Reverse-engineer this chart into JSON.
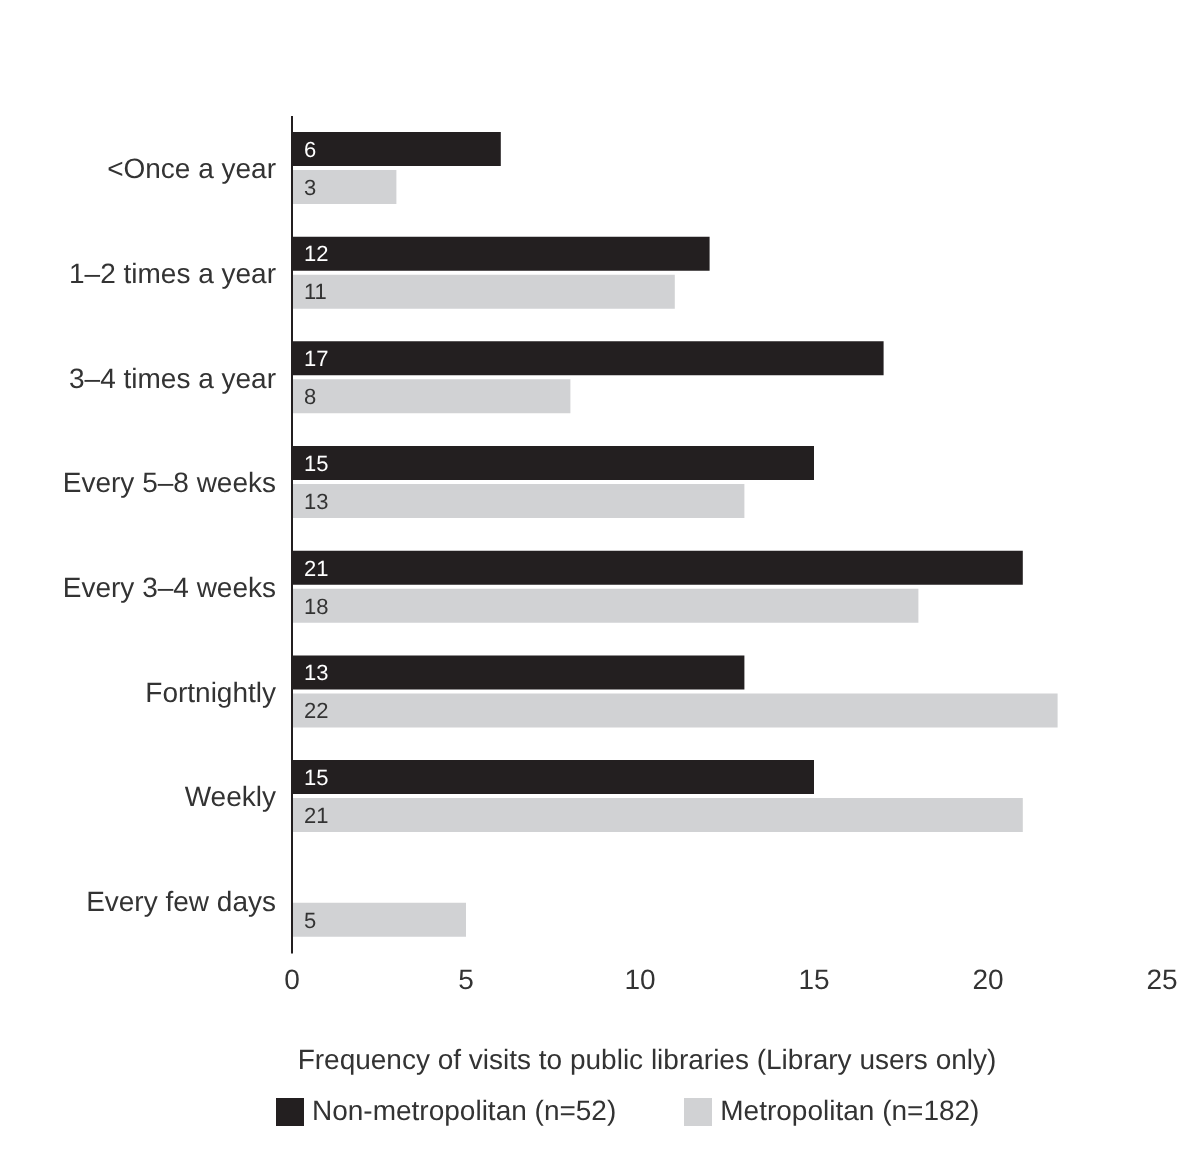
{
  "chart_data": {
    "type": "bar",
    "orientation": "horizontal",
    "xlabel": "Frequency of visits to public libraries (Library users only)",
    "categories": [
      "<Once a year",
      "1–2 times a year",
      "3–4 times a year",
      "Every 5–8 weeks",
      "Every 3–4 weeks",
      "Fortnightly",
      "Weekly",
      "Every few days"
    ],
    "series": [
      {
        "name": "Non-metropolitan (n=52)",
        "color": "#231f20",
        "values": [
          6,
          12,
          17,
          15,
          21,
          13,
          15,
          null
        ]
      },
      {
        "name": "Metropolitan (n=182)",
        "color": "#d1d2d4",
        "values": [
          3,
          11,
          8,
          13,
          18,
          22,
          21,
          5
        ]
      }
    ],
    "xlim": [
      0,
      25
    ],
    "xticks": [
      0,
      5,
      10,
      15,
      20,
      25
    ],
    "data_labels": true,
    "grid": false,
    "legend": "bottom"
  }
}
